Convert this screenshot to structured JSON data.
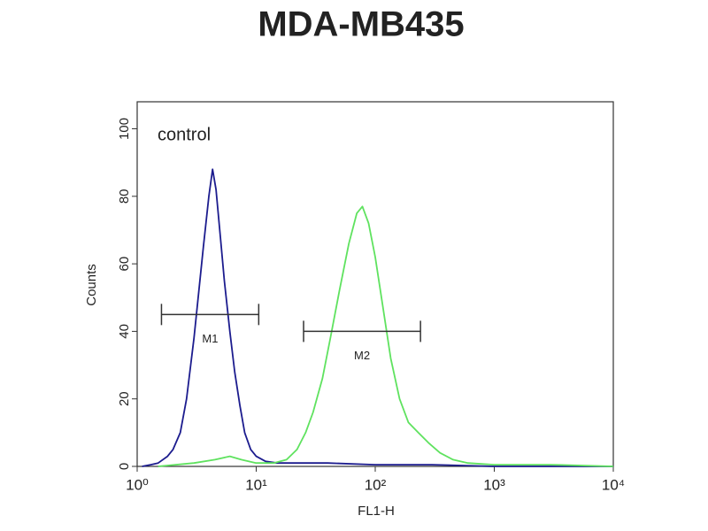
{
  "chart_data": {
    "type": "histogram-line",
    "title": "MDA-MB435",
    "x_label": "FL1-H",
    "y_label": "Counts",
    "xscale": "log",
    "xlim": [
      1,
      10000
    ],
    "xticks": [
      {
        "value": 1,
        "label": "10⁰"
      },
      {
        "value": 10,
        "label": "10¹"
      },
      {
        "value": 100,
        "label": "10²"
      },
      {
        "value": 1000,
        "label": "10³"
      },
      {
        "value": 10000,
        "label": "10⁴"
      }
    ],
    "ylim": [
      0,
      108
    ],
    "yticks": [
      0,
      20,
      40,
      60,
      80,
      100
    ],
    "series": [
      {
        "name": "control",
        "color": "#1c1c8e",
        "x": [
          1.1,
          1.3,
          1.5,
          1.8,
          2,
          2.3,
          2.6,
          3,
          3.3,
          3.6,
          4,
          4.3,
          4.6,
          5,
          5.4,
          6,
          6.6,
          7.3,
          8,
          9,
          10,
          12,
          15,
          20,
          40,
          100,
          300,
          1000,
          10000
        ],
        "values": [
          0,
          0.5,
          1,
          3,
          5,
          10,
          20,
          38,
          52,
          65,
          80,
          88,
          82,
          68,
          55,
          40,
          28,
          18,
          10,
          5,
          3,
          1.5,
          1,
          1,
          1,
          0.5,
          0.5,
          0,
          0
        ]
      },
      {
        "color": "#5fe25f",
        "x": [
          1.5,
          3,
          4.5,
          6,
          7.5,
          10,
          14,
          18,
          22,
          26,
          30,
          36,
          42,
          50,
          60,
          70,
          78,
          88,
          100,
          115,
          135,
          160,
          190,
          230,
          280,
          350,
          450,
          600,
          1000,
          3000,
          10000
        ],
        "values": [
          0,
          1,
          2,
          3,
          2,
          1,
          1,
          2,
          5,
          10,
          16,
          26,
          38,
          52,
          66,
          75,
          77,
          72,
          62,
          48,
          32,
          20,
          13,
          10,
          7,
          4,
          2,
          1,
          0.5,
          0.5,
          0
        ]
      }
    ],
    "markers": [
      {
        "label": "M1",
        "x": [
          1.6,
          10.5
        ],
        "y": 45
      },
      {
        "label": "M2",
        "x": [
          25,
          240
        ],
        "y": 40
      }
    ]
  }
}
